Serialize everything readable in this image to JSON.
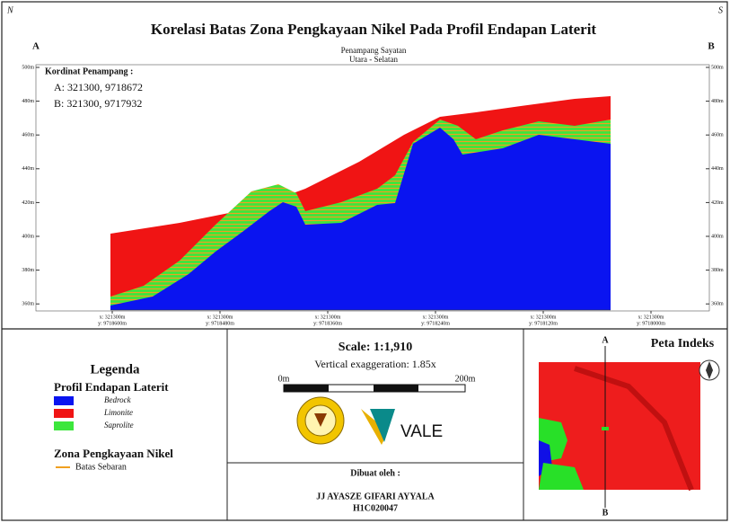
{
  "map": {
    "north": "N",
    "south": "S",
    "title": "Korelasi Batas Zona Pengkayaan Nikel Pada Profil Endapan Laterit",
    "end_a": "A",
    "end_b": "B",
    "section_title": "Penampang Sayatan",
    "section_direction": "Utara - Selatan",
    "elevation_labels": [
      "500m",
      "480m",
      "460m",
      "440m",
      "420m",
      "400m",
      "380m",
      "360m"
    ],
    "coordinates": {
      "heading": "Kordinat Penampang :",
      "a": "A:  321300, 9718672",
      "b": "B:  321300, 9717932"
    },
    "grid_labels": [
      {
        "x": "x: 321300m",
        "y": "y: 9718600m"
      },
      {
        "x": "x: 321300m",
        "y": "y: 9718480m"
      },
      {
        "x": "x: 321300m",
        "y": "y: 9718360m"
      },
      {
        "x": "x: 321300m",
        "y": "y: 9718240m"
      },
      {
        "x": "x: 321300m",
        "y": "y: 9718120m"
      },
      {
        "x": "x: 321300m",
        "y": "y: 9718000m"
      }
    ]
  },
  "legend": {
    "title": "Legenda",
    "group1": "Profil Endapan Laterit",
    "items": [
      {
        "label": "Bedrock",
        "color": "#0a14f0"
      },
      {
        "label": "Limonite",
        "color": "#f01414"
      },
      {
        "label": "Saprolite",
        "color": "#3ce63c"
      }
    ],
    "group2": "Zona Pengkayaan Nikel",
    "line_item": "Batas Sebaran",
    "line_color": "#f0a020"
  },
  "scale": {
    "ratio": "Scale: 1:1,910",
    "exaggeration": "Vertical exaggeration: 1.85x",
    "start": "0m",
    "end": "200m",
    "logo_text": "VALE"
  },
  "credits": {
    "heading": "Dibuat oleh :",
    "author": "JJ AYASZE GIFARI AYYALA",
    "id": "H1C020047"
  },
  "index_map": {
    "title": "Peta Indeks",
    "a": "A",
    "b": "B"
  }
}
